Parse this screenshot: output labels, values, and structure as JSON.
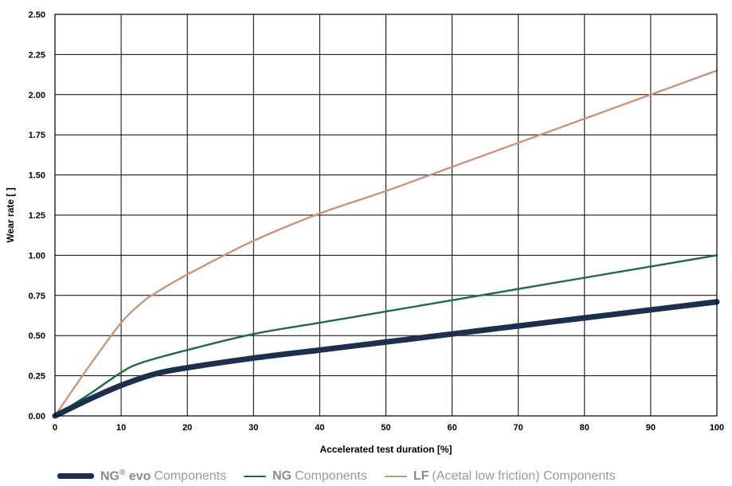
{
  "chart_data": {
    "type": "line",
    "xlabel": "Accelerated test duration [%]",
    "ylabel": "Wear rate [ ]",
    "xlim": [
      0,
      100
    ],
    "ylim": [
      0,
      2.5
    ],
    "xticks": [
      "0",
      "10",
      "20",
      "30",
      "40",
      "50",
      "60",
      "70",
      "80",
      "90",
      "100"
    ],
    "yticks": [
      "0.00",
      "0.25",
      "0.50",
      "0.75",
      "1.00",
      "1.25",
      "1.50",
      "1.75",
      "2.00",
      "2.25",
      "2.50"
    ],
    "grid": true,
    "legend_position": "bottom",
    "series": [
      {
        "name": "NG® evo Components",
        "legend_bold": "NG",
        "legend_sup": "®",
        "legend_bold2": " evo",
        "legend_rest": "Components",
        "color": "#1c2f4e",
        "x": [
          0,
          5,
          10,
          15,
          20,
          30,
          40,
          50,
          60,
          70,
          80,
          90,
          100
        ],
        "y": [
          0,
          0.1,
          0.19,
          0.26,
          0.3,
          0.36,
          0.41,
          0.46,
          0.51,
          0.56,
          0.61,
          0.66,
          0.71
        ]
      },
      {
        "name": "NG Components",
        "legend_bold": "NG",
        "legend_sup": "",
        "legend_bold2": "",
        "legend_rest": "Components",
        "color": "#1f6b45",
        "x": [
          0,
          5,
          10,
          13,
          20,
          30,
          40,
          50,
          60,
          70,
          80,
          90,
          100
        ],
        "y": [
          0,
          0.13,
          0.27,
          0.33,
          0.41,
          0.51,
          0.58,
          0.65,
          0.72,
          0.79,
          0.86,
          0.93,
          1.0
        ]
      },
      {
        "name": "LF (Acetal low friction) Components",
        "legend_bold": "LF",
        "legend_sup": "",
        "legend_bold2": "",
        "legend_rest": "(Acetal low friction) Components",
        "color": "#c9957a",
        "x": [
          0,
          5,
          10,
          13,
          15,
          20,
          30,
          40,
          50,
          60,
          70,
          80,
          90,
          100
        ],
        "y": [
          0,
          0.3,
          0.58,
          0.7,
          0.76,
          0.88,
          1.09,
          1.26,
          1.4,
          1.55,
          1.7,
          1.85,
          2.0,
          2.15
        ]
      }
    ]
  }
}
